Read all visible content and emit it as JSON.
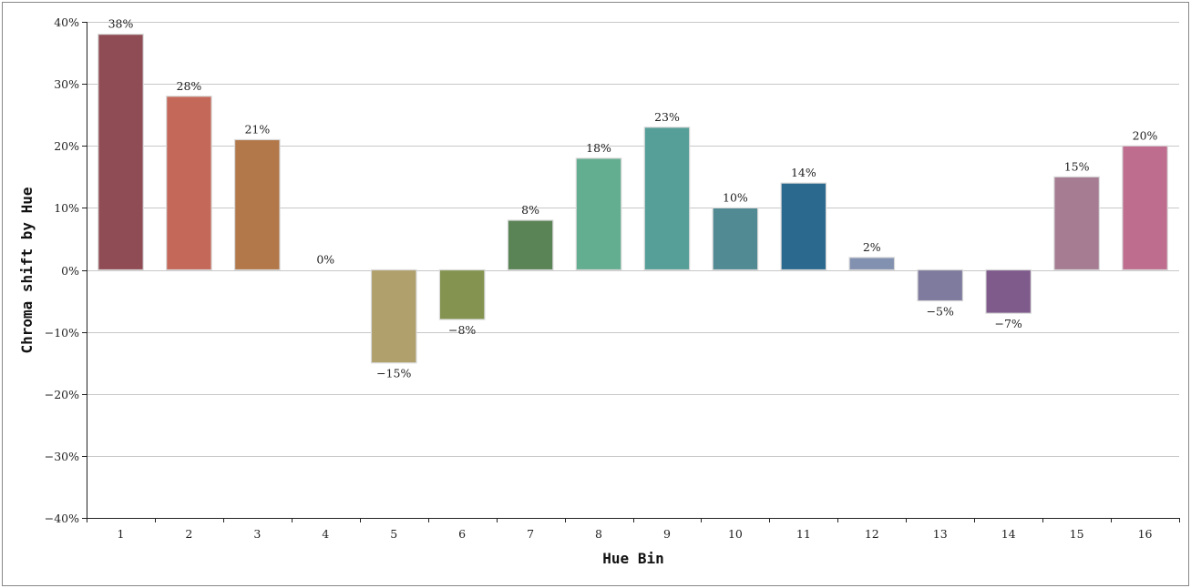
{
  "chart_data": {
    "type": "bar",
    "xlabel": "Hue Bin",
    "ylabel": "Chroma shift by Hue",
    "ylim": [
      -40,
      40
    ],
    "y_ticks": [
      -40,
      -30,
      -20,
      -10,
      0,
      10,
      20,
      30,
      40
    ],
    "y_tick_labels": [
      "−40%",
      "−30%",
      "−20%",
      "−10%",
      "0%",
      "10%",
      "20%",
      "30%",
      "40%"
    ],
    "y_unit": "%",
    "grid": "horizontal",
    "legend": "none",
    "categories": [
      "1",
      "2",
      "3",
      "4",
      "5",
      "6",
      "7",
      "8",
      "9",
      "10",
      "11",
      "12",
      "13",
      "14",
      "15",
      "16"
    ],
    "values": [
      38,
      28,
      21,
      0,
      -15,
      -8,
      8,
      18,
      23,
      10,
      14,
      2,
      -5,
      -7,
      15,
      20
    ],
    "data_labels": [
      "38%",
      "28%",
      "21%",
      "0%",
      "−15%",
      "−8%",
      "8%",
      "18%",
      "23%",
      "10%",
      "14%",
      "2%",
      "−5%",
      "−7%",
      "15%",
      "20%"
    ],
    "colors": [
      "#904c54",
      "#c4695a",
      "#b27849",
      "#b27849",
      "#b0a06c",
      "#849450",
      "#5a8356",
      "#63ae90",
      "#559f98",
      "#518a93",
      "#2b6a8e",
      "#8391b0",
      "#7f7b9e",
      "#7e5b8b",
      "#a57c92",
      "#bf6d8f"
    ]
  }
}
